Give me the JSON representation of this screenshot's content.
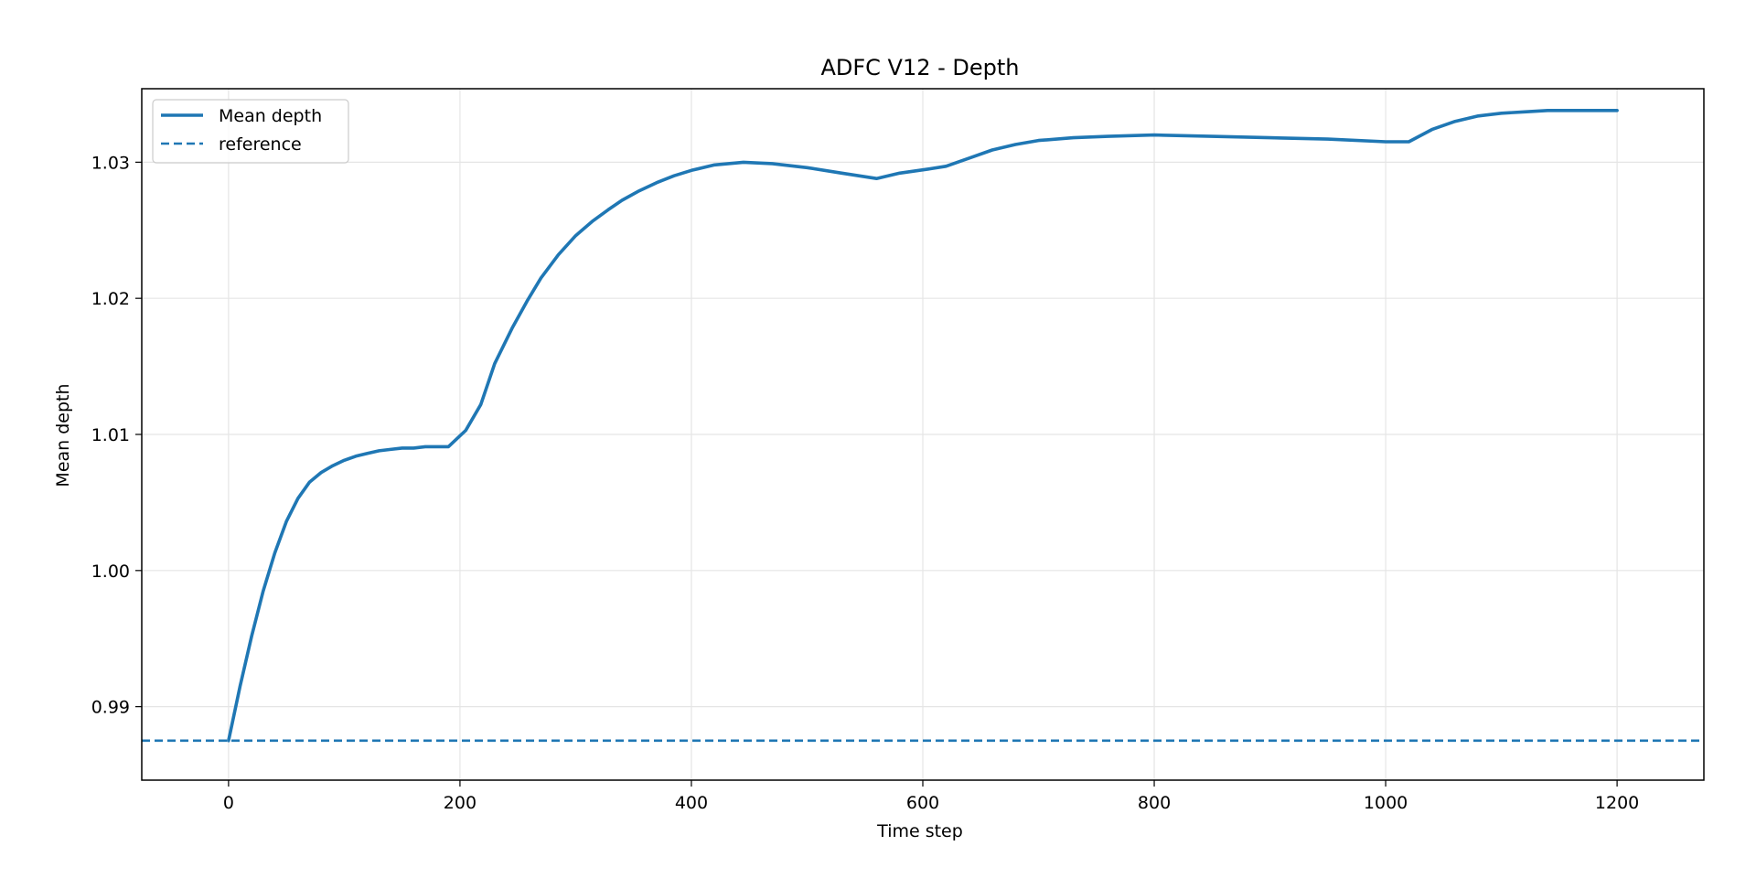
{
  "chart_data": {
    "type": "line",
    "title": "ADFC V12 - Depth",
    "xlabel": "Time step",
    "ylabel": "Mean depth",
    "xlim": [
      -75,
      1275
    ],
    "ylim": [
      0.9846,
      1.0354
    ],
    "xticks": [
      0,
      200,
      400,
      600,
      800,
      1000,
      1200
    ],
    "xtick_labels": [
      "0",
      "200",
      "400",
      "600",
      "800",
      "1000",
      "1200"
    ],
    "yticks": [
      0.99,
      1.0,
      1.01,
      1.02,
      1.03
    ],
    "ytick_labels": [
      "0.99",
      "1.00",
      "1.01",
      "1.02",
      "1.03"
    ],
    "grid": true,
    "legend_position": "upper-left",
    "colors": {
      "series": "#1f77b4",
      "grid": "#e5e5e5",
      "frame": "#000000"
    },
    "series": [
      {
        "name": "Mean depth",
        "style": "solid",
        "x": [
          0,
          10,
          20,
          30,
          40,
          50,
          60,
          70,
          80,
          90,
          100,
          110,
          120,
          130,
          140,
          150,
          160,
          170,
          180,
          190,
          205,
          218,
          230,
          245,
          258,
          270,
          285,
          300,
          315,
          328,
          340,
          355,
          370,
          385,
          400,
          420,
          445,
          470,
          500,
          530,
          560,
          580,
          605,
          620,
          640,
          660,
          680,
          700,
          730,
          760,
          800,
          850,
          900,
          950,
          1000,
          1020,
          1040,
          1060,
          1080,
          1100,
          1120,
          1140,
          1160,
          1180,
          1200
        ],
        "y": [
          0.9875,
          0.9915,
          0.9952,
          0.9985,
          1.0013,
          1.0036,
          1.0053,
          1.0065,
          1.0072,
          1.0077,
          1.0081,
          1.0084,
          1.0086,
          1.0088,
          1.0089,
          1.009,
          1.009,
          1.0091,
          1.0091,
          1.0091,
          1.0103,
          1.0122,
          1.0152,
          1.0178,
          1.0198,
          1.0215,
          1.0232,
          1.0246,
          1.0257,
          1.0265,
          1.0272,
          1.0279,
          1.0285,
          1.029,
          1.0294,
          1.0298,
          1.03,
          1.0299,
          1.0296,
          1.0292,
          1.0288,
          1.0292,
          1.0295,
          1.0297,
          1.0303,
          1.0309,
          1.0313,
          1.0316,
          1.0318,
          1.0319,
          1.032,
          1.0319,
          1.0318,
          1.0317,
          1.0315,
          1.0315,
          1.0324,
          1.033,
          1.0334,
          1.0336,
          1.0337,
          1.0338,
          1.0338,
          1.0338,
          1.0338
        ]
      },
      {
        "name": "reference",
        "style": "dashed",
        "y_constant": 0.9875
      }
    ]
  }
}
